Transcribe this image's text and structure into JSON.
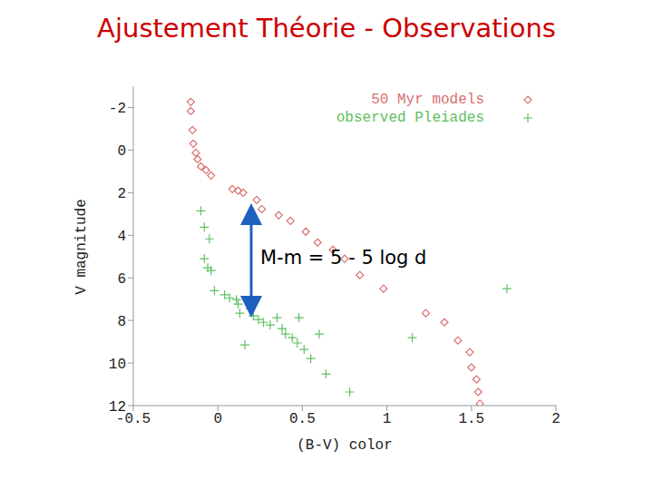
{
  "chart_data": {
    "type": "scatter",
    "title": "Ajustement Théorie - Observations",
    "x_label": "(B-V) color",
    "y_label": "V magnitude",
    "annotation": "M-m = 5 - 5 log d",
    "xlim": [
      -0.5,
      2
    ],
    "xticks": [
      -0.5,
      0,
      0.5,
      1,
      1.5,
      2
    ],
    "ylim": [
      12,
      -3
    ],
    "yticks": [
      -2,
      0,
      2,
      4,
      6,
      8,
      10,
      12
    ],
    "grid": false,
    "legend": "top-right",
    "series": [
      {
        "name": "50 Myr models",
        "color": "#d87070",
        "marker": "diamond",
        "x": [
          -0.16,
          -0.16,
          -0.15,
          -0.145,
          -0.13,
          -0.12,
          -0.1,
          -0.07,
          -0.04,
          0.086,
          0.12,
          0.15,
          0.23,
          0.26,
          0.36,
          0.43,
          0.52,
          0.59,
          0.68,
          0.75,
          0.84,
          0.98,
          1.23,
          1.34,
          1.42,
          1.49,
          1.5,
          1.53,
          1.54,
          1.55
        ],
        "values": [
          -2.26,
          -1.83,
          -0.94,
          -0.3,
          0.13,
          0.43,
          0.77,
          0.94,
          1.19,
          1.83,
          1.91,
          2.0,
          2.34,
          2.77,
          3.06,
          3.32,
          3.83,
          4.34,
          4.68,
          5.1,
          5.87,
          6.51,
          7.66,
          8.09,
          8.94,
          9.49,
          10.21,
          10.77,
          11.36,
          11.91
        ]
      },
      {
        "name": "observed Pleiades",
        "color": "#60c060",
        "marker": "plus",
        "x": [
          -0.1,
          -0.08,
          -0.05,
          -0.08,
          -0.06,
          -0.04,
          -0.02,
          0.04,
          0.07,
          0.11,
          0.12,
          0.13,
          0.19,
          0.21,
          0.24,
          0.27,
          0.31,
          0.35,
          0.38,
          0.4,
          0.44,
          0.47,
          0.48,
          0.51,
          0.55,
          0.6,
          0.64,
          0.78,
          0.16,
          1.15,
          1.71
        ],
        "values": [
          2.85,
          3.62,
          4.17,
          5.1,
          5.53,
          5.66,
          6.6,
          6.8,
          6.94,
          7.02,
          7.23,
          7.66,
          7.45,
          7.79,
          7.96,
          8.09,
          8.21,
          7.87,
          8.38,
          8.64,
          8.81,
          9.06,
          7.87,
          9.36,
          9.79,
          8.64,
          10.51,
          11.36,
          9.15,
          8.81,
          6.51
        ]
      }
    ]
  }
}
